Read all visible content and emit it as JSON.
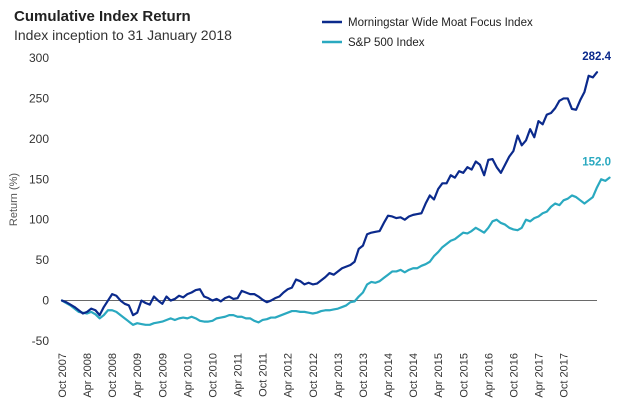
{
  "chart_data": {
    "type": "line",
    "title": "Cumulative Index Return",
    "subtitle": "Index inception to 31 January 2018",
    "ylabel": "Return (%)",
    "ylim": [
      -50,
      300
    ],
    "yticks": [
      "300",
      "250",
      "200",
      "150",
      "100",
      "50",
      "0",
      "-50"
    ],
    "xticks": [
      "Oct 2007",
      "Apr 2008",
      "Oct 2008",
      "Apr 2009",
      "Oct 2009",
      "Apr 2010",
      "Oct 2010",
      "Apr 2011",
      "Oct 2011",
      "Apr 2012",
      "Oct 2012",
      "Apr 2013",
      "Oct 2013",
      "Apr 2014",
      "Oct 2014",
      "Apr 2015",
      "Oct 2015",
      "Apr 2016",
      "Oct 2016",
      "Apr 2017",
      "Oct 2017"
    ],
    "x_start": "Oct 2007",
    "x_end": "Jan 2018",
    "legend_position": "top-right",
    "zero_line": true,
    "series": [
      {
        "name": "Morningstar Wide Moat Focus Index",
        "color": "#0b2a8c",
        "end_label": "282.4",
        "values": [
          0,
          -2,
          -5,
          -8,
          -12,
          -16,
          -14,
          -10,
          -12,
          -18,
          -8,
          0,
          8,
          6,
          0,
          -4,
          -6,
          -18,
          -15,
          0,
          -3,
          -5,
          5,
          0,
          -4,
          5,
          0,
          2,
          6,
          4,
          8,
          10,
          13,
          14,
          5,
          3,
          0,
          2,
          -1,
          3,
          5,
          2,
          3,
          12,
          10,
          8,
          8,
          5,
          1,
          -2,
          0,
          3,
          5,
          10,
          14,
          16,
          26,
          24,
          20,
          22,
          20,
          21,
          25,
          29,
          34,
          32,
          36,
          40,
          42,
          44,
          48,
          64,
          68,
          82,
          84,
          85,
          86,
          96,
          105,
          104,
          102,
          103,
          100,
          104,
          106,
          107,
          108,
          120,
          130,
          125,
          138,
          145,
          145,
          155,
          152,
          160,
          158,
          165,
          162,
          172,
          168,
          155,
          174,
          175,
          165,
          158,
          168,
          178,
          185,
          204,
          192,
          198,
          212,
          202,
          222,
          218,
          230,
          232,
          238,
          247,
          250,
          250,
          237,
          236,
          248,
          258,
          278,
          276,
          282.4
        ]
      },
      {
        "name": "S&P 500 Index",
        "color": "#2aa9c0",
        "end_label": "152.0",
        "values": [
          0,
          -3,
          -6,
          -10,
          -14,
          -15,
          -16,
          -14,
          -17,
          -22,
          -18,
          -12,
          -12,
          -14,
          -18,
          -22,
          -26,
          -30,
          -28,
          -29,
          -30,
          -30,
          -28,
          -27,
          -26,
          -24,
          -22,
          -24,
          -22,
          -21,
          -22,
          -20,
          -22,
          -25,
          -26,
          -26,
          -25,
          -22,
          -21,
          -20,
          -18,
          -18,
          -20,
          -20,
          -22,
          -22,
          -25,
          -27,
          -24,
          -23,
          -21,
          -21,
          -19,
          -17,
          -15,
          -13,
          -13,
          -14,
          -14,
          -15,
          -16,
          -15,
          -13,
          -12,
          -12,
          -11,
          -10,
          -8,
          -6,
          -2,
          -1,
          5,
          10,
          20,
          23,
          22,
          24,
          28,
          32,
          36,
          36,
          38,
          35,
          38,
          40,
          40,
          43,
          45,
          48,
          55,
          60,
          66,
          70,
          74,
          76,
          80,
          84,
          83,
          86,
          90,
          87,
          84,
          90,
          98,
          100,
          96,
          94,
          90,
          88,
          87,
          90,
          100,
          98,
          102,
          104,
          108,
          110,
          116,
          120,
          118,
          124,
          126,
          130,
          128,
          124,
          120,
          124,
          128,
          140,
          150,
          148,
          152.0
        ]
      }
    ]
  }
}
